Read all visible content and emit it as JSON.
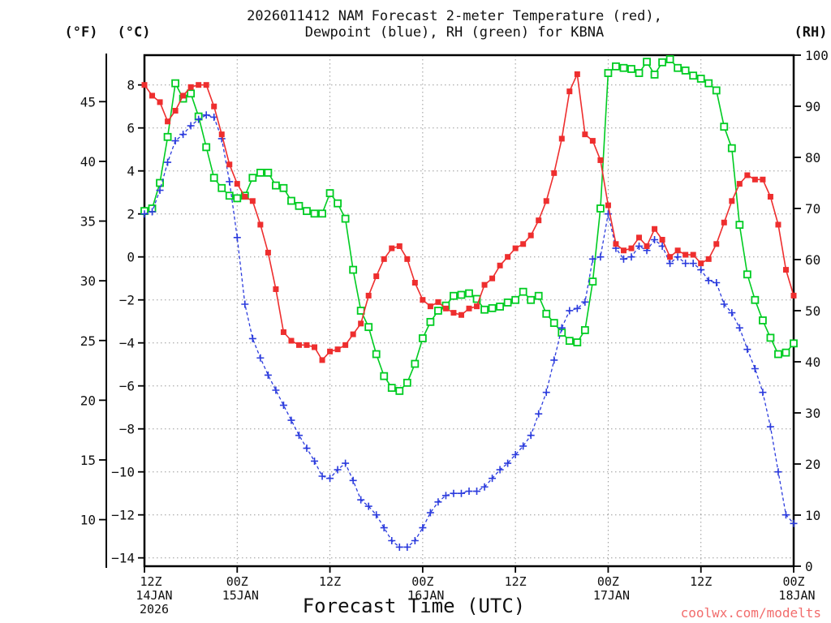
{
  "title": {
    "line1": "2026011412 NAM Forecast 2-meter Temperature (red),",
    "line2": "Dewpoint (blue), RH (green) for KBNA"
  },
  "axes": {
    "left_f_unit": "(°F)",
    "left_c_unit": "(°C)",
    "right_rh_unit": "(RH)",
    "x_title": "Forecast Time (UTC)",
    "f_ticks": [
      45,
      40,
      35,
      30,
      25,
      20,
      15,
      10
    ],
    "c_ticks": [
      8,
      6,
      4,
      2,
      0,
      -2,
      -4,
      -6,
      -8,
      -10,
      -12,
      -14
    ],
    "rh_ticks": [
      100,
      90,
      80,
      70,
      60,
      50,
      40,
      30,
      20,
      10,
      0
    ],
    "x_ticks": [
      {
        "hour": 0,
        "time": "12Z",
        "date": "14JAN",
        "year": "2026"
      },
      {
        "hour": 12,
        "time": "00Z",
        "date": "15JAN",
        "year": ""
      },
      {
        "hour": 24,
        "time": "12Z",
        "date": "",
        "year": ""
      },
      {
        "hour": 36,
        "time": "00Z",
        "date": "16JAN",
        "year": ""
      },
      {
        "hour": 48,
        "time": "12Z",
        "date": "",
        "year": ""
      },
      {
        "hour": 60,
        "time": "00Z",
        "date": "17JAN",
        "year": ""
      },
      {
        "hour": 72,
        "time": "12Z",
        "date": "",
        "year": ""
      },
      {
        "hour": 84,
        "time": "00Z",
        "date": "18JAN",
        "year": ""
      }
    ]
  },
  "watermark": {
    "text": "coolwx.com/modelts",
    "color": "#f26c6c"
  },
  "colors": {
    "temperature": "#ee2e2e",
    "dewpoint": "#2b3bdd",
    "rh": "#00cc22",
    "grid": "#999999",
    "axis": "#000000",
    "text": "#111111"
  },
  "chart_data": {
    "type": "line",
    "title": "2026011412 NAM Forecast 2-meter Temperature (red), Dewpoint (blue), RH (green) for KBNA",
    "xlabel": "Forecast Time (UTC)",
    "x_axis": {
      "start_label": "12Z 14JAN 2026",
      "end_label": "00Z 18JAN",
      "units": "hours from forecast init",
      "range": [
        0,
        84
      ],
      "major_tick_every_hours": 12
    },
    "left_axis": {
      "label": "Temperature (°C)",
      "range_ticks": [
        8,
        -14
      ],
      "secondary_label": "Temperature (°F)",
      "f_tick_range": [
        45,
        10
      ]
    },
    "right_axis": {
      "label": "RH (%)",
      "range": [
        0,
        100
      ]
    },
    "grid": "dotted, horizontal at 2°C steps, vertical at 12h steps",
    "legend": "colors encode series; no legend box drawn",
    "x_hours": [
      0,
      1,
      2,
      3,
      4,
      5,
      6,
      7,
      8,
      9,
      10,
      11,
      12,
      13,
      14,
      15,
      16,
      17,
      18,
      19,
      20,
      21,
      22,
      23,
      24,
      25,
      26,
      27,
      28,
      29,
      30,
      31,
      32,
      33,
      34,
      35,
      36,
      37,
      38,
      39,
      40,
      41,
      42,
      43,
      44,
      45,
      46,
      47,
      48,
      49,
      50,
      51,
      52,
      53,
      54,
      55,
      56,
      57,
      58,
      59,
      60,
      61,
      62,
      63,
      64,
      65,
      66,
      67,
      68,
      69,
      70,
      71,
      72,
      73,
      74,
      75,
      76,
      77,
      78,
      79,
      80,
      81,
      82,
      83,
      84
    ],
    "series": [
      {
        "name": "2-meter Temperature",
        "units": "°C",
        "axis": "c",
        "color": "#ee2e2e",
        "marker": "square-filled",
        "line_style": "solid",
        "values": [
          8.0,
          7.5,
          7.2,
          6.3,
          6.8,
          7.5,
          7.9,
          8.0,
          8.0,
          7.0,
          5.7,
          4.3,
          3.4,
          2.8,
          2.6,
          1.5,
          0.2,
          -1.5,
          -3.5,
          -3.9,
          -4.1,
          -4.1,
          -4.2,
          -4.8,
          -4.4,
          -4.3,
          -4.1,
          -3.6,
          -3.1,
          -1.8,
          -0.9,
          -0.1,
          0.4,
          0.5,
          -0.1,
          -1.2,
          -2.0,
          -2.3,
          -2.1,
          -2.4,
          -2.6,
          -2.7,
          -2.4,
          -2.3,
          -1.3,
          -1.0,
          -0.4,
          0.0,
          0.4,
          0.6,
          1.0,
          1.7,
          2.6,
          3.9,
          5.5,
          7.7,
          8.5,
          5.7,
          5.4,
          4.5,
          2.4,
          0.6,
          0.3,
          0.4,
          0.9,
          0.5,
          1.3,
          0.8,
          0.0,
          0.3,
          0.1,
          0.1,
          -0.3,
          -0.1,
          0.6,
          1.6,
          2.6,
          3.4,
          3.8,
          3.6,
          3.6,
          2.8,
          1.5,
          -0.6,
          -1.8
        ]
      },
      {
        "name": "Dewpoint",
        "units": "°C",
        "axis": "c",
        "color": "#2b3bdd",
        "marker": "plus",
        "line_style": "dashed",
        "values": [
          2.0,
          2.1,
          3.1,
          4.4,
          5.4,
          5.7,
          6.1,
          6.4,
          6.6,
          6.5,
          5.5,
          3.5,
          0.9,
          -2.2,
          -3.8,
          -4.7,
          -5.5,
          -6.2,
          -6.9,
          -7.6,
          -8.3,
          -8.9,
          -9.5,
          -10.2,
          -10.3,
          -9.9,
          -9.6,
          -10.4,
          -11.3,
          -11.6,
          -12.0,
          -12.6,
          -13.2,
          -13.5,
          -13.5,
          -13.2,
          -12.6,
          -11.9,
          -11.4,
          -11.1,
          -11.0,
          -11.0,
          -10.9,
          -10.9,
          -10.7,
          -10.3,
          -9.9,
          -9.6,
          -9.2,
          -8.8,
          -8.3,
          -7.3,
          -6.3,
          -4.8,
          -3.3,
          -2.5,
          -2.4,
          -2.1,
          -0.1,
          0.0,
          2.0,
          0.4,
          -0.1,
          0.0,
          0.5,
          0.3,
          0.8,
          0.5,
          -0.3,
          0.0,
          -0.3,
          -0.3,
          -0.6,
          -1.1,
          -1.2,
          -2.2,
          -2.6,
          -3.3,
          -4.3,
          -5.2,
          -6.3,
          -7.9,
          -10.0,
          -12.0,
          -12.4
        ]
      },
      {
        "name": "Relative Humidity",
        "units": "%",
        "axis": "rh",
        "color": "#00cc22",
        "marker": "square-open",
        "line_style": "solid",
        "values": [
          69.5,
          70,
          75,
          84,
          94.5,
          91.5,
          92.5,
          88,
          82,
          76,
          74,
          72.5,
          72,
          72.5,
          76,
          77,
          77,
          74.5,
          74,
          71.5,
          70.5,
          69.5,
          69,
          69,
          73,
          71,
          68,
          58,
          50,
          46.8,
          41.5,
          37.2,
          34.9,
          34.3,
          35.9,
          39.6,
          44.6,
          47.8,
          50,
          51,
          52.9,
          53.1,
          53.4,
          52.3,
          50.2,
          50.5,
          50.8,
          51.6,
          52.1,
          53.7,
          52.1,
          52.9,
          49.4,
          47.6,
          45.7,
          44.1,
          43.8,
          46.2,
          55.7,
          70,
          96.5,
          97.8,
          97.5,
          97.3,
          96.5,
          98.7,
          96.2,
          98.6,
          99.2,
          97.5,
          97,
          96,
          95.4,
          94.5,
          93.1,
          86,
          81.8,
          66.8,
          57.1,
          52.1,
          48.1,
          44.7,
          41.5,
          41.8,
          43.6
        ]
      }
    ]
  }
}
